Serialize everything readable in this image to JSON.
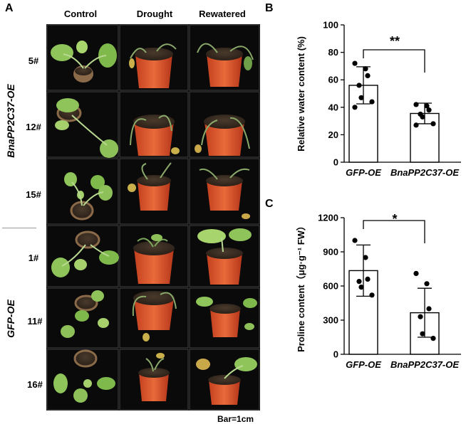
{
  "panel_a": {
    "letter": "A",
    "columns": [
      "Control",
      "Drought",
      "Rewatered"
    ],
    "groups": [
      {
        "name": "BnaPP2C37-OE",
        "lines": [
          "5#",
          "12#",
          "15#"
        ]
      },
      {
        "name": "GFP-OE",
        "lines": [
          "1#",
          "11#",
          "16#"
        ]
      }
    ],
    "scale_note": "Bar=1cm"
  },
  "panel_b": {
    "letter": "B",
    "significance": "**",
    "chart_data": {
      "type": "bar",
      "categories": [
        "GFP-OE",
        "BnaPP2C37-OE"
      ],
      "values": [
        56,
        35.5
      ],
      "error": [
        13.5,
        7.5
      ],
      "points": [
        [
          72,
          68,
          63,
          56,
          47,
          44,
          40
        ],
        [
          42,
          41,
          38,
          35,
          33,
          28,
          27
        ]
      ],
      "ylabel": "Relative water content (%)",
      "ylim": [
        0,
        100
      ],
      "yticks": [
        "0",
        "20",
        "40",
        "60",
        "80",
        "100"
      ]
    }
  },
  "panel_c": {
    "letter": "C",
    "significance": "*",
    "chart_data": {
      "type": "bar",
      "categories": [
        "GFP-OE",
        "BnaPP2C37-OE"
      ],
      "values": [
        735,
        365
      ],
      "error": [
        225,
        215
      ],
      "points": [
        [
          1000,
          850,
          660,
          640,
          590,
          520
        ],
        [
          710,
          620,
          400,
          330,
          180,
          140
        ]
      ],
      "ylabel": "Proline content（μg·g⁻¹ FW）",
      "ylim": [
        0,
        1200
      ],
      "yticks": [
        "0",
        "300",
        "600",
        "900",
        "1200"
      ]
    }
  }
}
